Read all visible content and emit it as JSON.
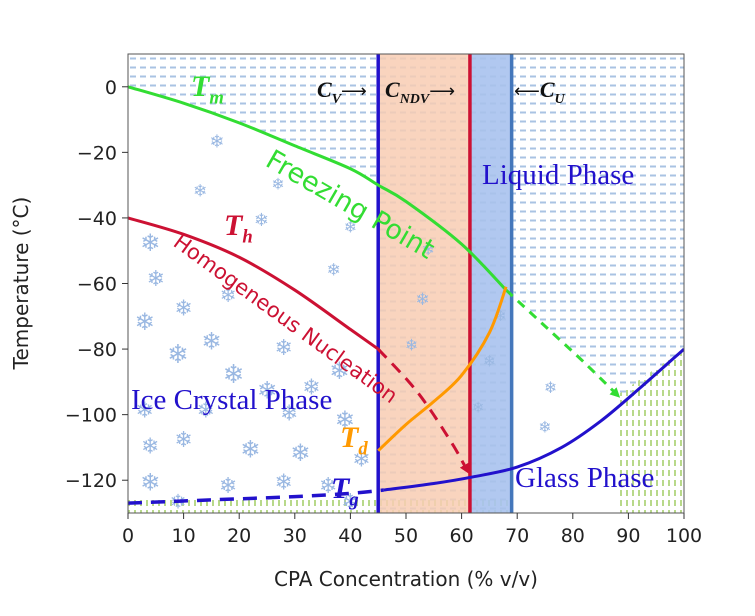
{
  "chart_data": {
    "type": "line",
    "xlabel": "CPA Concentration (% v/v)",
    "ylabel": "Temperature (°C)",
    "xlim": [
      0,
      100
    ],
    "ylim": [
      -130,
      10
    ],
    "xticks": [
      "0",
      "10",
      "20",
      "30",
      "40",
      "50",
      "60",
      "70",
      "80",
      "90",
      "100"
    ],
    "yticks": [
      "0",
      "−20",
      "−40",
      "−60",
      "−80",
      "−100",
      "−120"
    ],
    "grid": false,
    "colors": {
      "tm": "#33dd33",
      "th": "#cc1133",
      "tg": "#2211cc",
      "td": "#ff9900",
      "cv": "#2211cc",
      "cndv": "#cc1133",
      "cu": "#4477bb",
      "ndv_band": "#f8cdb3",
      "u_band": "#a9c2ee",
      "snow": "#9ab8e2",
      "region_text": "#2211cc"
    },
    "series": [
      {
        "key": "tm",
        "x": [
          0,
          10,
          20,
          30,
          40,
          45,
          50,
          60,
          68
        ],
        "y": [
          0,
          -5,
          -11,
          -18,
          -25,
          -30,
          -35,
          -48,
          -62
        ]
      },
      {
        "key": "tm_ext",
        "x": [
          68,
          75,
          82,
          88
        ],
        "y": [
          -62,
          -73,
          -84,
          -94
        ]
      },
      {
        "key": "th",
        "x": [
          0,
          10,
          20,
          30,
          40,
          45
        ],
        "y": [
          -40,
          -45,
          -52,
          -62,
          -74,
          -80
        ]
      },
      {
        "key": "th_ext",
        "x": [
          45,
          52,
          58,
          61
        ],
        "y": [
          -80,
          -93,
          -108,
          -117
        ]
      },
      {
        "key": "td",
        "x": [
          45,
          50,
          55,
          60,
          65,
          68
        ],
        "y": [
          -111,
          -103,
          -96,
          -88,
          -75,
          -61
        ]
      },
      {
        "key": "tg_dashed",
        "x": [
          0,
          15,
          30,
          40,
          46
        ],
        "y": [
          -127,
          -126,
          -125,
          -124,
          -123
        ]
      },
      {
        "key": "tg",
        "x": [
          46,
          55,
          62,
          70,
          78,
          85,
          92,
          100
        ],
        "y": [
          -123,
          -121,
          -119,
          -116,
          -110,
          -102,
          -92,
          -80
        ]
      }
    ],
    "vlines": [
      {
        "key": "cv",
        "x": 45
      },
      {
        "key": "cndv",
        "x": 61.5
      },
      {
        "key": "cu",
        "x": 69
      }
    ],
    "bands": [
      {
        "key": "ndv_band",
        "x": [
          45,
          61.5
        ]
      },
      {
        "key": "u_band",
        "x": [
          61.5,
          69
        ]
      }
    ],
    "annotations": {
      "tm_label": "T",
      "tm_sub": "m",
      "th_label": "T",
      "th_sub": "h",
      "td_label": "T",
      "td_sub": "d",
      "tg_label": "T",
      "tg_sub": "g",
      "freezing_point": "Freezing Point",
      "homogeneous_nucleation": "Homogeneous Nucleation",
      "liquid_phase": "Liquid Phase",
      "ice_crystal_phase": "Ice Crystal Phase",
      "glass_phase": "Glass Phase",
      "cv_label": "C",
      "cv_sub": "V",
      "cv_arrow": "⟶",
      "cndv_label": "C",
      "cndv_sub": "NDV",
      "cndv_arrow": "⟶",
      "cu_arrow": "⟵",
      "cu_label": "C",
      "cu_sub": "U"
    },
    "snowflake_glyph": "❄"
  }
}
